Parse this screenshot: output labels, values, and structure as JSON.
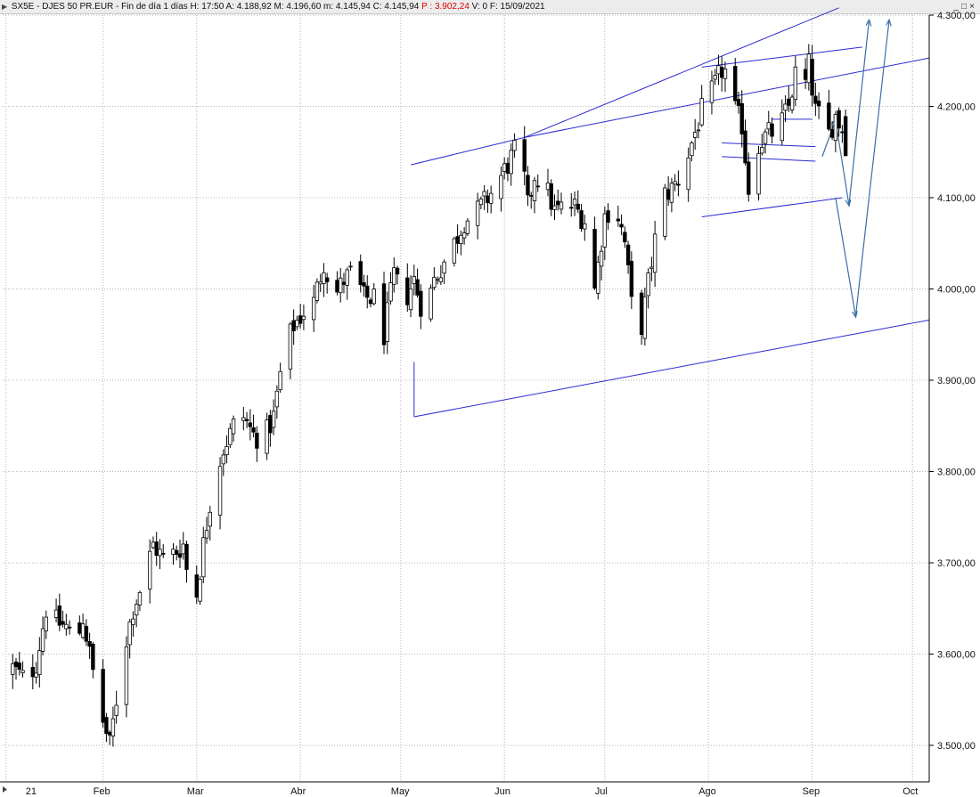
{
  "header": {
    "symbol": "SX5E",
    "name": "DJES 50 PR.EUR",
    "period": "Fin de día 1 días",
    "hour_label": "H: 17:50",
    "open_label": "A: 4.188,92",
    "high_label": "M: 4.196,60",
    "low_label": "m: 4.145,94",
    "close_label": "C: 4.145,94",
    "price_label": "P : 3.902,24",
    "volume_label": "V: 0",
    "date_label": "F: 15/09/2021"
  },
  "window_controls": [
    "_",
    "□",
    "×"
  ],
  "colors": {
    "grid": "#b4b4b4",
    "trendline": "#2a2ad0",
    "arrow": "#3a6fa8",
    "candle": "#000000",
    "price_red": "#e00000"
  },
  "chart_data": {
    "type": "candlestick",
    "title": "SX5E - DJES 50 PR.EUR",
    "y_tick_labels": [
      "3.500,00",
      "3.600,00",
      "3.700,00",
      "3.800,00",
      "3.900,00",
      "4.000,00",
      "4.100,00",
      "4.200,00",
      "4.300,00"
    ],
    "y_ticks": [
      3500,
      3600,
      3700,
      3800,
      3900,
      4000,
      4100,
      4200,
      4300
    ],
    "ylim": [
      3460,
      4300
    ],
    "x_labels": [
      "21",
      "Feb",
      "Mar",
      "Abr",
      "May",
      "Jun",
      "Jul",
      "Ago",
      "Sep",
      "Oct"
    ],
    "x_label_days": [
      2,
      31,
      59,
      90,
      120,
      151,
      181,
      212,
      243,
      273
    ],
    "xlim": [
      1,
      278
    ],
    "last_date": "15/09/2021",
    "last_bar": {
      "open": 4188.92,
      "high": 4196.6,
      "low": 4145.94,
      "close": 4145.94
    },
    "anchors": [
      [
        4,
        3585
      ],
      [
        8,
        3570
      ],
      [
        11,
        3590
      ],
      [
        14,
        3650
      ],
      [
        17,
        3635
      ],
      [
        20,
        3630
      ],
      [
        23,
        3610
      ],
      [
        25,
        3640
      ],
      [
        28,
        3580
      ],
      [
        30,
        3540
      ],
      [
        33,
        3500
      ],
      [
        35,
        3550
      ],
      [
        37,
        3600
      ],
      [
        40,
        3650
      ],
      [
        43,
        3680
      ],
      [
        46,
        3720
      ],
      [
        49,
        3705
      ],
      [
        52,
        3710
      ],
      [
        55,
        3720
      ],
      [
        58,
        3640
      ],
      [
        61,
        3720
      ],
      [
        64,
        3790
      ],
      [
        67,
        3825
      ],
      [
        70,
        3850
      ],
      [
        73,
        3860
      ],
      [
        76,
        3840
      ],
      [
        79,
        3835
      ],
      [
        82,
        3860
      ],
      [
        85,
        3930
      ],
      [
        88,
        3960
      ],
      [
        91,
        3975
      ],
      [
        94,
        3985
      ],
      [
        97,
        4030
      ],
      [
        100,
        3990
      ],
      [
        103,
        4010
      ],
      [
        106,
        4020
      ],
      [
        109,
        3990
      ],
      [
        112,
        3990
      ],
      [
        115,
        3950
      ],
      [
        118,
        4015
      ],
      [
        121,
        3985
      ],
      [
        124,
        4010
      ],
      [
        127,
        3970
      ],
      [
        130,
        4010
      ],
      [
        133,
        4030
      ],
      [
        136,
        4050
      ],
      [
        139,
        4075
      ],
      [
        142,
        4080
      ],
      [
        145,
        4095
      ],
      [
        148,
        4110
      ],
      [
        151,
        4130
      ],
      [
        154,
        4150
      ],
      [
        156,
        4150
      ],
      [
        158,
        4090
      ],
      [
        160,
        4125
      ],
      [
        163,
        4115
      ],
      [
        166,
        4085
      ],
      [
        169,
        4090
      ],
      [
        172,
        4090
      ],
      [
        175,
        4075
      ],
      [
        178,
        4000
      ],
      [
        181,
        4080
      ],
      [
        184,
        4095
      ],
      [
        187,
        4050
      ],
      [
        190,
        3950
      ],
      [
        192,
        3960
      ],
      [
        195,
        4030
      ],
      [
        198,
        4100
      ],
      [
        201,
        4110
      ],
      [
        204,
        4125
      ],
      [
        207,
        4160
      ],
      [
        210,
        4195
      ],
      [
        213,
        4215
      ],
      [
        216,
        4240
      ],
      [
        218,
        4235
      ],
      [
        220,
        4195
      ],
      [
        222,
        4180
      ],
      [
        224,
        4110
      ],
      [
        227,
        4160
      ],
      [
        230,
        4170
      ],
      [
        233,
        4175
      ],
      [
        236,
        4200
      ],
      [
        238,
        4235
      ],
      [
        240,
        4205
      ],
      [
        242,
        4245
      ],
      [
        244,
        4195
      ],
      [
        246,
        4185
      ],
      [
        248,
        4170
      ],
      [
        250,
        4190
      ],
      [
        252,
        4175
      ]
    ],
    "trendlines": [
      {
        "p1": [
          123,
          4136
        ],
        "p2": [
          157,
          4166
        ]
      },
      {
        "p1": [
          157,
          4166
        ],
        "p2": [
          251,
          4308
        ]
      },
      {
        "p1": [
          157,
          4166
        ],
        "p2": [
          278,
          4253
        ]
      },
      {
        "p1": [
          210,
          4243
        ],
        "p2": [
          258,
          4265
        ]
      },
      {
        "p1": [
          124,
          3860
        ],
        "p2": [
          278,
          3966
        ]
      },
      {
        "p1": [
          124,
          3860
        ],
        "p2": [
          124,
          3920
        ]
      },
      {
        "p1": [
          210,
          4079
        ],
        "p2": [
          252,
          4100
        ]
      },
      {
        "p1": [
          216,
          4160
        ],
        "p2": [
          244,
          4156
        ]
      },
      {
        "p1": [
          216,
          4145
        ],
        "p2": [
          244,
          4140
        ]
      },
      {
        "p1": [
          231,
          4186
        ],
        "p2": [
          243,
          4186
        ]
      }
    ],
    "arrows": [
      {
        "p1": [
          246,
          4145
        ],
        "p2": [
          250,
          4185
        ]
      },
      {
        "p1": [
          250,
          4185
        ],
        "p2": [
          254,
          4092
        ]
      },
      {
        "p1": [
          254,
          4092
        ],
        "p2": [
          260,
          4294
        ]
      },
      {
        "p1": [
          250,
          4100
        ],
        "p2": [
          256,
          3970
        ]
      },
      {
        "p1": [
          256,
          3970
        ],
        "p2": [
          266,
          4294
        ]
      }
    ]
  }
}
